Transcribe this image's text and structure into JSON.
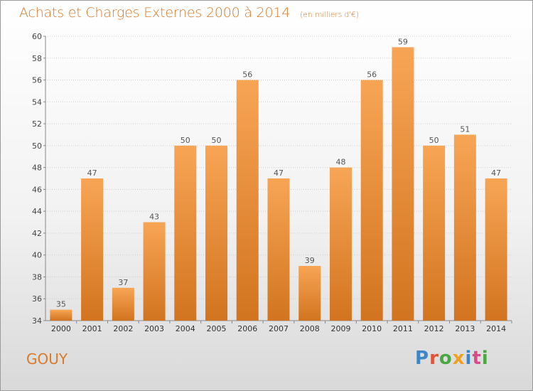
{
  "header": {
    "title": "Achats et Charges Externes 2000 à 2014",
    "unit": "(en milliers d'€)"
  },
  "footer": {
    "place": "GOUY",
    "brand": "Proxiti",
    "brand_colors": [
      "#3a86c8",
      "#e0543a",
      "#4aa844",
      "#f0a020",
      "#3a86c8",
      "#d94a8c",
      "#4aa844"
    ]
  },
  "colors": {
    "bar_top": "#f7a555",
    "bar_bottom": "#d2741f",
    "label": "#555555",
    "title": "#d97a2b"
  },
  "chart_data": {
    "type": "bar",
    "title": "Achats et Charges Externes 2000 à 2014",
    "subtitle": "(en milliers d'€)",
    "xlabel": "",
    "ylabel": "",
    "categories": [
      "2000",
      "2001",
      "2002",
      "2003",
      "2004",
      "2005",
      "2006",
      "2007",
      "2008",
      "2009",
      "2010",
      "2011",
      "2012",
      "2013",
      "2014"
    ],
    "values": [
      35,
      47,
      37,
      43,
      50,
      50,
      56,
      47,
      39,
      48,
      56,
      59,
      50,
      51,
      47
    ],
    "ylim": [
      34,
      60
    ],
    "yticks": [
      34,
      36,
      38,
      40,
      42,
      44,
      46,
      48,
      50,
      52,
      54,
      56,
      58,
      60
    ],
    "grid": true,
    "data_labels": true
  }
}
